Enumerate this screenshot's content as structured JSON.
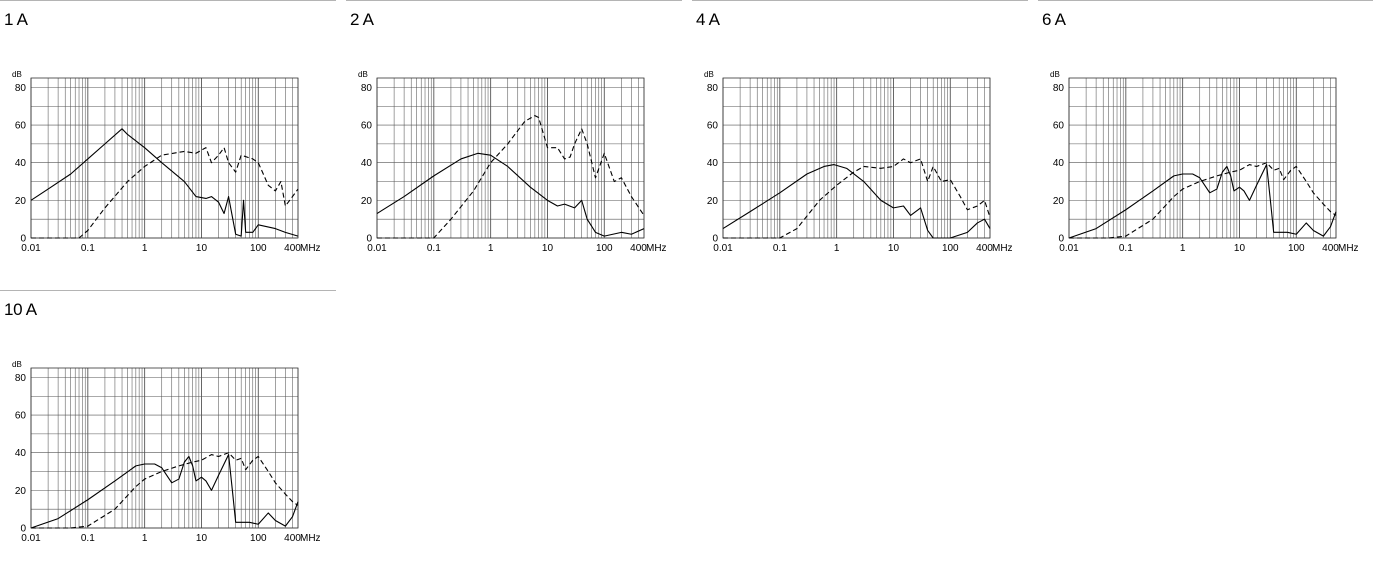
{
  "chart_data": [
    {
      "type": "line",
      "title": "1 A",
      "ylabel": "dB",
      "x_unit": "MHz",
      "x_scale": "log",
      "xlim": [
        0.01,
        500
      ],
      "ylim": [
        0,
        85
      ],
      "x_ticks": [
        0.01,
        0.1,
        1,
        10,
        100,
        400
      ],
      "x_tick_labels": [
        "0.01",
        "0.1",
        "1",
        "10",
        "100",
        "400"
      ],
      "y_ticks": [
        0,
        20,
        40,
        60,
        80
      ],
      "y_tick_labels": [
        "0",
        "20",
        "40",
        "60",
        "80"
      ],
      "grid": true,
      "series": [
        {
          "style": "solid",
          "points": [
            [
              0.01,
              20
            ],
            [
              0.02,
              26
            ],
            [
              0.05,
              34
            ],
            [
              0.1,
              42
            ],
            [
              0.2,
              50
            ],
            [
              0.4,
              58
            ],
            [
              0.5,
              55
            ],
            [
              1,
              48
            ],
            [
              2,
              40
            ],
            [
              5,
              30
            ],
            [
              8,
              22
            ],
            [
              12,
              21
            ],
            [
              15,
              22
            ],
            [
              20,
              19
            ],
            [
              25,
              13
            ],
            [
              30,
              22
            ],
            [
              40,
              2
            ],
            [
              50,
              1
            ],
            [
              55,
              20
            ],
            [
              60,
              3
            ],
            [
              80,
              3
            ],
            [
              100,
              7
            ],
            [
              200,
              5
            ],
            [
              300,
              3
            ],
            [
              500,
              1
            ]
          ]
        },
        {
          "style": "dashed",
          "points": [
            [
              0.01,
              0
            ],
            [
              0.04,
              0
            ],
            [
              0.07,
              0
            ],
            [
              0.1,
              4
            ],
            [
              0.2,
              16
            ],
            [
              0.5,
              30
            ],
            [
              1,
              38
            ],
            [
              2,
              44
            ],
            [
              5,
              46
            ],
            [
              8,
              45
            ],
            [
              12,
              48
            ],
            [
              15,
              40
            ],
            [
              20,
              44
            ],
            [
              25,
              48
            ],
            [
              30,
              40
            ],
            [
              40,
              35
            ],
            [
              50,
              44
            ],
            [
              80,
              42
            ],
            [
              100,
              40
            ],
            [
              150,
              28
            ],
            [
              200,
              25
            ],
            [
              250,
              30
            ],
            [
              300,
              17
            ],
            [
              400,
              22
            ],
            [
              500,
              26
            ]
          ]
        }
      ]
    },
    {
      "type": "line",
      "title": "2 A",
      "ylabel": "dB",
      "x_unit": "MHz",
      "x_scale": "log",
      "xlim": [
        0.01,
        500
      ],
      "ylim": [
        0,
        85
      ],
      "x_ticks": [
        0.01,
        0.1,
        1,
        10,
        100,
        400
      ],
      "x_tick_labels": [
        "0.01",
        "0.1",
        "1",
        "10",
        "100",
        "400"
      ],
      "y_ticks": [
        0,
        20,
        40,
        60,
        80
      ],
      "y_tick_labels": [
        "0",
        "20",
        "40",
        "60",
        "80"
      ],
      "grid": true,
      "series": [
        {
          "style": "solid",
          "points": [
            [
              0.01,
              13
            ],
            [
              0.03,
              22
            ],
            [
              0.1,
              33
            ],
            [
              0.3,
              42
            ],
            [
              0.6,
              45
            ],
            [
              1,
              44
            ],
            [
              2,
              38
            ],
            [
              5,
              27
            ],
            [
              10,
              20
            ],
            [
              15,
              17
            ],
            [
              20,
              18
            ],
            [
              30,
              16
            ],
            [
              40,
              20
            ],
            [
              50,
              10
            ],
            [
              70,
              3
            ],
            [
              100,
              1
            ],
            [
              200,
              3
            ],
            [
              300,
              2
            ],
            [
              500,
              5
            ]
          ]
        },
        {
          "style": "dashed",
          "points": [
            [
              0.01,
              0
            ],
            [
              0.05,
              0
            ],
            [
              0.1,
              0
            ],
            [
              0.2,
              10
            ],
            [
              0.5,
              25
            ],
            [
              1,
              40
            ],
            [
              2,
              50
            ],
            [
              4,
              62
            ],
            [
              6,
              65
            ],
            [
              7,
              64
            ],
            [
              10,
              48
            ],
            [
              15,
              48
            ],
            [
              20,
              42
            ],
            [
              25,
              43
            ],
            [
              30,
              50
            ],
            [
              40,
              58
            ],
            [
              50,
              50
            ],
            [
              70,
              32
            ],
            [
              100,
              45
            ],
            [
              150,
              30
            ],
            [
              200,
              32
            ],
            [
              300,
              22
            ],
            [
              500,
              12
            ]
          ]
        }
      ]
    },
    {
      "type": "line",
      "title": "4 A",
      "ylabel": "dB",
      "x_unit": "MHz",
      "x_scale": "log",
      "xlim": [
        0.01,
        500
      ],
      "ylim": [
        0,
        85
      ],
      "x_ticks": [
        0.01,
        0.1,
        1,
        10,
        100,
        400
      ],
      "x_tick_labels": [
        "0.01",
        "0.1",
        "1",
        "10",
        "100",
        "400"
      ],
      "y_ticks": [
        0,
        20,
        40,
        60,
        80
      ],
      "y_tick_labels": [
        "0",
        "20",
        "40",
        "60",
        "80"
      ],
      "grid": true,
      "series": [
        {
          "style": "solid",
          "points": [
            [
              0.01,
              5
            ],
            [
              0.03,
              14
            ],
            [
              0.1,
              24
            ],
            [
              0.3,
              34
            ],
            [
              0.6,
              38
            ],
            [
              0.9,
              39
            ],
            [
              1.5,
              37
            ],
            [
              3,
              30
            ],
            [
              6,
              20
            ],
            [
              10,
              16
            ],
            [
              15,
              17
            ],
            [
              20,
              12
            ],
            [
              30,
              16
            ],
            [
              40,
              4
            ],
            [
              50,
              0
            ],
            [
              100,
              0
            ],
            [
              200,
              3
            ],
            [
              300,
              8
            ],
            [
              400,
              10
            ],
            [
              500,
              5
            ]
          ]
        },
        {
          "style": "dashed",
          "points": [
            [
              0.01,
              0
            ],
            [
              0.05,
              0
            ],
            [
              0.1,
              0
            ],
            [
              0.2,
              5
            ],
            [
              0.5,
              20
            ],
            [
              1,
              28
            ],
            [
              2,
              35
            ],
            [
              3,
              38
            ],
            [
              6,
              37
            ],
            [
              10,
              38
            ],
            [
              15,
              42
            ],
            [
              20,
              40
            ],
            [
              30,
              42
            ],
            [
              40,
              30
            ],
            [
              50,
              38
            ],
            [
              70,
              30
            ],
            [
              100,
              31
            ],
            [
              150,
              22
            ],
            [
              200,
              15
            ],
            [
              300,
              17
            ],
            [
              400,
              20
            ],
            [
              500,
              11
            ]
          ]
        }
      ]
    },
    {
      "type": "line",
      "title": "6 A",
      "ylabel": "dB",
      "x_unit": "MHz",
      "x_scale": "log",
      "xlim": [
        0.01,
        500
      ],
      "ylim": [
        0,
        85
      ],
      "x_ticks": [
        0.01,
        0.1,
        1,
        10,
        100,
        400
      ],
      "x_tick_labels": [
        "0.01",
        "0.1",
        "1",
        "10",
        "100",
        "400"
      ],
      "y_ticks": [
        0,
        20,
        40,
        60,
        80
      ],
      "y_tick_labels": [
        "0",
        "20",
        "40",
        "60",
        "80"
      ],
      "grid": true,
      "series": [
        {
          "style": "solid",
          "points": [
            [
              0.01,
              0
            ],
            [
              0.03,
              5
            ],
            [
              0.1,
              15
            ],
            [
              0.3,
              25
            ],
            [
              0.7,
              33
            ],
            [
              1,
              34
            ],
            [
              1.5,
              34
            ],
            [
              2,
              32
            ],
            [
              3,
              24
            ],
            [
              4,
              26
            ],
            [
              5,
              35
            ],
            [
              6,
              38
            ],
            [
              7,
              33
            ],
            [
              8,
              25
            ],
            [
              10,
              27
            ],
            [
              12,
              25
            ],
            [
              15,
              20
            ],
            [
              20,
              28
            ],
            [
              30,
              39
            ],
            [
              35,
              20
            ],
            [
              40,
              3
            ],
            [
              70,
              3
            ],
            [
              100,
              2
            ],
            [
              150,
              8
            ],
            [
              200,
              4
            ],
            [
              300,
              1
            ],
            [
              400,
              6
            ],
            [
              500,
              14
            ]
          ]
        },
        {
          "style": "dashed",
          "points": [
            [
              0.01,
              0
            ],
            [
              0.05,
              0
            ],
            [
              0.1,
              1
            ],
            [
              0.3,
              10
            ],
            [
              0.7,
              22
            ],
            [
              1,
              26
            ],
            [
              2,
              30
            ],
            [
              4,
              33
            ],
            [
              7,
              35
            ],
            [
              10,
              36
            ],
            [
              15,
              39
            ],
            [
              20,
              38
            ],
            [
              30,
              40
            ],
            [
              40,
              36
            ],
            [
              50,
              37
            ],
            [
              60,
              31
            ],
            [
              80,
              36
            ],
            [
              100,
              38
            ],
            [
              150,
              30
            ],
            [
              200,
              24
            ],
            [
              300,
              18
            ],
            [
              400,
              14
            ],
            [
              500,
              12
            ]
          ]
        }
      ]
    },
    {
      "type": "line",
      "title": "10 A",
      "ylabel": "dB",
      "x_unit": "MHz",
      "x_scale": "log",
      "xlim": [
        0.01,
        500
      ],
      "ylim": [
        0,
        85
      ],
      "x_ticks": [
        0.01,
        0.1,
        1,
        10,
        100,
        400
      ],
      "x_tick_labels": [
        "0.01",
        "0.1",
        "1",
        "10",
        "100",
        "400"
      ],
      "y_ticks": [
        0,
        20,
        40,
        60,
        80
      ],
      "y_tick_labels": [
        "0",
        "20",
        "40",
        "60",
        "80"
      ],
      "grid": true,
      "series": [
        {
          "style": "solid",
          "points": [
            [
              0.01,
              0
            ],
            [
              0.03,
              5
            ],
            [
              0.1,
              15
            ],
            [
              0.3,
              25
            ],
            [
              0.7,
              33
            ],
            [
              1,
              34
            ],
            [
              1.5,
              34
            ],
            [
              2,
              32
            ],
            [
              3,
              24
            ],
            [
              4,
              26
            ],
            [
              5,
              35
            ],
            [
              6,
              38
            ],
            [
              7,
              33
            ],
            [
              8,
              25
            ],
            [
              10,
              27
            ],
            [
              12,
              25
            ],
            [
              15,
              20
            ],
            [
              20,
              28
            ],
            [
              30,
              39
            ],
            [
              35,
              20
            ],
            [
              40,
              3
            ],
            [
              70,
              3
            ],
            [
              100,
              2
            ],
            [
              150,
              8
            ],
            [
              200,
              4
            ],
            [
              300,
              1
            ],
            [
              400,
              6
            ],
            [
              500,
              14
            ]
          ]
        },
        {
          "style": "dashed",
          "points": [
            [
              0.01,
              0
            ],
            [
              0.05,
              0
            ],
            [
              0.1,
              1
            ],
            [
              0.3,
              10
            ],
            [
              0.7,
              22
            ],
            [
              1,
              26
            ],
            [
              2,
              30
            ],
            [
              4,
              33
            ],
            [
              7,
              35
            ],
            [
              10,
              36
            ],
            [
              15,
              39
            ],
            [
              20,
              38
            ],
            [
              30,
              40
            ],
            [
              40,
              36
            ],
            [
              50,
              37
            ],
            [
              60,
              31
            ],
            [
              80,
              36
            ],
            [
              100,
              38
            ],
            [
              150,
              30
            ],
            [
              200,
              24
            ],
            [
              300,
              18
            ],
            [
              400,
              14
            ],
            [
              500,
              12
            ]
          ]
        }
      ]
    }
  ],
  "common": {
    "x_unit_label": "MHz",
    "y_unit_label": "dB"
  }
}
